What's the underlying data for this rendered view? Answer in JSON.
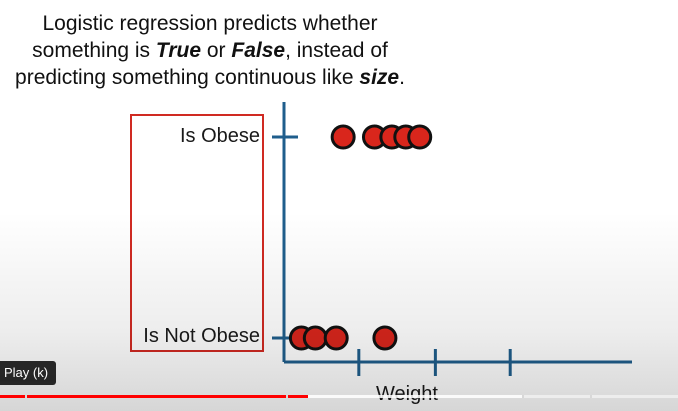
{
  "slide": {
    "title_line1": "Logistic regression predicts whether",
    "title_line2_a": "something is ",
    "title_line2_true": "True",
    "title_line2_b": " or ",
    "title_line2_false": "False",
    "title_line2_c": ", instead of",
    "title_line3_a": "predicting something continuous like ",
    "title_line3_size": "size",
    "title_line3_b": "."
  },
  "chart_data": {
    "type": "scatter",
    "xlabel": "Weight",
    "y_categories": [
      "Is Not Obese",
      "Is Obese"
    ],
    "points_obese_fraction_of_axis": [
      0.17,
      0.26,
      0.31,
      0.35,
      0.39
    ],
    "points_not_obese_fraction_of_axis": [
      0.05,
      0.09,
      0.15,
      0.29
    ],
    "colors": {
      "point_fill": "#d9261c",
      "point_stroke": "#111111",
      "axis": "#1f5e8c",
      "frame": "#d02a22"
    }
  },
  "player": {
    "tooltip": "Play (k)",
    "progress_played_fraction": 0.455,
    "progress_buffered_fraction": 0.77,
    "colors": {
      "played": "#ff0000"
    }
  }
}
